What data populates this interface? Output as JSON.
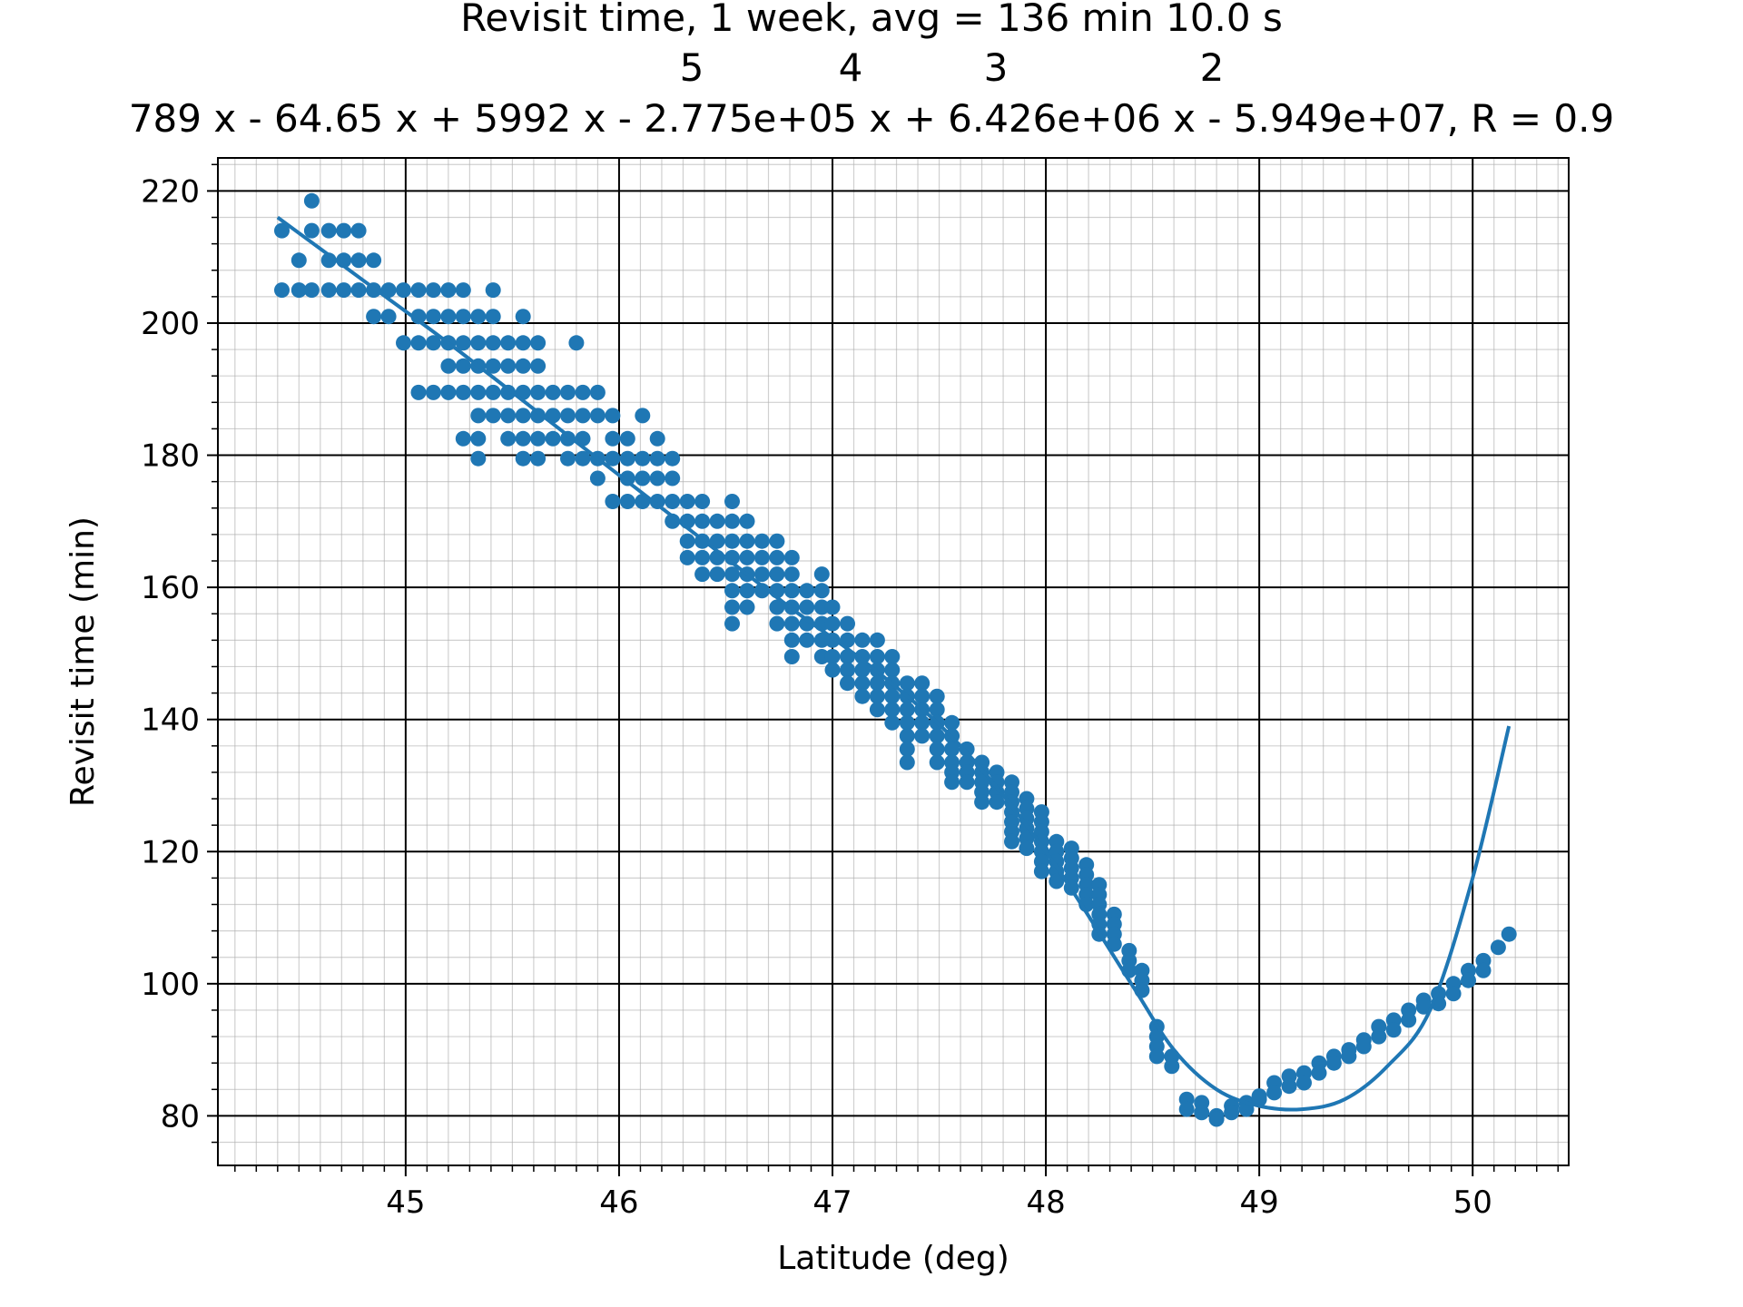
{
  "chart_data": {
    "type": "scatter",
    "title": "Revisit time, 1 week, avg = 136 min 10.0 s",
    "subtitle_exponents": [
      "5",
      "4",
      "3",
      "2"
    ],
    "subtitle": "789 x - 64.65 x + 5992 x - 2.775e+05 x + 6.426e+06 x - 5.949e+07, R = 0.9",
    "xlabel": "Latitude (deg)",
    "ylabel": "Revisit time (min)",
    "xlim": [
      44.12,
      50.45
    ],
    "ylim": [
      72.5,
      225
    ],
    "x_ticks": [
      45,
      46,
      47,
      48,
      49,
      50
    ],
    "y_ticks": [
      80,
      100,
      120,
      140,
      160,
      180,
      200,
      220
    ],
    "grid": true,
    "minor_grid": true,
    "series_color": "#1f77b4",
    "fit_curve": {
      "x": [
        44.4,
        44.8,
        45.2,
        45.6,
        46.0,
        46.4,
        46.8,
        47.2,
        47.6,
        48.0,
        48.4,
        48.6,
        48.8,
        49.0,
        49.2,
        49.4,
        49.6,
        49.8,
        50.0,
        50.17
      ],
      "y": [
        216,
        206.5,
        197,
        187,
        177,
        167,
        157,
        147.5,
        136,
        120,
        100,
        90,
        84,
        81.5,
        81,
        82.5,
        87.5,
        96,
        116,
        139
      ]
    },
    "scatter_points": [
      [
        44.42,
        214
      ],
      [
        44.42,
        205
      ],
      [
        44.5,
        209.5
      ],
      [
        44.5,
        205
      ],
      [
        44.56,
        218.5
      ],
      [
        44.56,
        214
      ],
      [
        44.56,
        205
      ],
      [
        44.64,
        209.5
      ],
      [
        44.64,
        205
      ],
      [
        44.64,
        214
      ],
      [
        44.71,
        214
      ],
      [
        44.71,
        209.5
      ],
      [
        44.71,
        205
      ],
      [
        44.78,
        214
      ],
      [
        44.78,
        209.5
      ],
      [
        44.78,
        205
      ],
      [
        44.85,
        209.5
      ],
      [
        44.85,
        205
      ],
      [
        44.85,
        201
      ],
      [
        44.92,
        205
      ],
      [
        44.92,
        201
      ],
      [
        44.99,
        205
      ],
      [
        44.99,
        197
      ],
      [
        45.06,
        205
      ],
      [
        45.06,
        201
      ],
      [
        45.06,
        197
      ],
      [
        45.06,
        189.5
      ],
      [
        45.13,
        205
      ],
      [
        45.13,
        201
      ],
      [
        45.13,
        197
      ],
      [
        45.13,
        189.5
      ],
      [
        45.2,
        205
      ],
      [
        45.2,
        201
      ],
      [
        45.2,
        197
      ],
      [
        45.2,
        193.5
      ],
      [
        45.2,
        189.5
      ],
      [
        45.27,
        205
      ],
      [
        45.27,
        201
      ],
      [
        45.27,
        197
      ],
      [
        45.27,
        193.5
      ],
      [
        45.27,
        189.5
      ],
      [
        45.27,
        182.5
      ],
      [
        45.34,
        201
      ],
      [
        45.34,
        197
      ],
      [
        45.34,
        193.5
      ],
      [
        45.34,
        189.5
      ],
      [
        45.34,
        186
      ],
      [
        45.34,
        182.5
      ],
      [
        45.34,
        179.5
      ],
      [
        45.41,
        205
      ],
      [
        45.41,
        201
      ],
      [
        45.41,
        197
      ],
      [
        45.41,
        193.5
      ],
      [
        45.41,
        189.5
      ],
      [
        45.41,
        186
      ],
      [
        45.48,
        197
      ],
      [
        45.48,
        193.5
      ],
      [
        45.48,
        189.5
      ],
      [
        45.48,
        186
      ],
      [
        45.48,
        182.5
      ],
      [
        45.55,
        201
      ],
      [
        45.55,
        197
      ],
      [
        45.55,
        193.5
      ],
      [
        45.55,
        189.5
      ],
      [
        45.55,
        186
      ],
      [
        45.55,
        182.5
      ],
      [
        45.55,
        179.5
      ],
      [
        45.62,
        197
      ],
      [
        45.62,
        193.5
      ],
      [
        45.62,
        189.5
      ],
      [
        45.62,
        186
      ],
      [
        45.62,
        182.5
      ],
      [
        45.62,
        179.5
      ],
      [
        45.69,
        189.5
      ],
      [
        45.69,
        186
      ],
      [
        45.69,
        182.5
      ],
      [
        45.76,
        189.5
      ],
      [
        45.76,
        186
      ],
      [
        45.76,
        182.5
      ],
      [
        45.76,
        179.5
      ],
      [
        45.8,
        197
      ],
      [
        45.83,
        189.5
      ],
      [
        45.83,
        186
      ],
      [
        45.83,
        182.5
      ],
      [
        45.83,
        179.5
      ],
      [
        45.9,
        189.5
      ],
      [
        45.9,
        186
      ],
      [
        45.9,
        179.5
      ],
      [
        45.9,
        176.5
      ],
      [
        45.97,
        186
      ],
      [
        45.97,
        182.5
      ],
      [
        45.97,
        179.5
      ],
      [
        45.97,
        173
      ],
      [
        46.04,
        182.5
      ],
      [
        46.04,
        179.5
      ],
      [
        46.04,
        176.5
      ],
      [
        46.04,
        173
      ],
      [
        46.11,
        186
      ],
      [
        46.11,
        179.5
      ],
      [
        46.11,
        176.5
      ],
      [
        46.11,
        173
      ],
      [
        46.18,
        182.5
      ],
      [
        46.18,
        179.5
      ],
      [
        46.18,
        176.5
      ],
      [
        46.18,
        173
      ],
      [
        46.25,
        179.5
      ],
      [
        46.25,
        176.5
      ],
      [
        46.25,
        173
      ],
      [
        46.25,
        170
      ],
      [
        46.32,
        173
      ],
      [
        46.32,
        170
      ],
      [
        46.32,
        167
      ],
      [
        46.32,
        164.5
      ],
      [
        46.39,
        173
      ],
      [
        46.39,
        170
      ],
      [
        46.39,
        167
      ],
      [
        46.39,
        164.5
      ],
      [
        46.39,
        162
      ],
      [
        46.46,
        170
      ],
      [
        46.46,
        167
      ],
      [
        46.46,
        164.5
      ],
      [
        46.46,
        162
      ],
      [
        46.53,
        173
      ],
      [
        46.53,
        170
      ],
      [
        46.53,
        167
      ],
      [
        46.53,
        164.5
      ],
      [
        46.53,
        162
      ],
      [
        46.53,
        159.5
      ],
      [
        46.53,
        157
      ],
      [
        46.53,
        154.5
      ],
      [
        46.6,
        170
      ],
      [
        46.6,
        167
      ],
      [
        46.6,
        164.5
      ],
      [
        46.6,
        162
      ],
      [
        46.6,
        159.5
      ],
      [
        46.6,
        157
      ],
      [
        46.67,
        167
      ],
      [
        46.67,
        164.5
      ],
      [
        46.67,
        162
      ],
      [
        46.67,
        159.5
      ],
      [
        46.74,
        167
      ],
      [
        46.74,
        164.5
      ],
      [
        46.74,
        162
      ],
      [
        46.74,
        159.5
      ],
      [
        46.74,
        157
      ],
      [
        46.74,
        154.5
      ],
      [
        46.81,
        164.5
      ],
      [
        46.81,
        162
      ],
      [
        46.81,
        159.5
      ],
      [
        46.81,
        157
      ],
      [
        46.81,
        154.5
      ],
      [
        46.81,
        152
      ],
      [
        46.81,
        149.5
      ],
      [
        46.88,
        159.5
      ],
      [
        46.88,
        157
      ],
      [
        46.88,
        154.5
      ],
      [
        46.88,
        152
      ],
      [
        46.95,
        162
      ],
      [
        46.95,
        159.5
      ],
      [
        46.95,
        157
      ],
      [
        46.95,
        154.5
      ],
      [
        46.95,
        152
      ],
      [
        46.95,
        149.5
      ],
      [
        47.0,
        157
      ],
      [
        47.0,
        154.5
      ],
      [
        47.0,
        152
      ],
      [
        47.0,
        149.5
      ],
      [
        47.0,
        147.5
      ],
      [
        47.07,
        154.5
      ],
      [
        47.07,
        152
      ],
      [
        47.07,
        149.5
      ],
      [
        47.07,
        147.5
      ],
      [
        47.07,
        145.5
      ],
      [
        47.14,
        152
      ],
      [
        47.14,
        149.5
      ],
      [
        47.14,
        147.5
      ],
      [
        47.14,
        145.5
      ],
      [
        47.14,
        143.5
      ],
      [
        47.21,
        152
      ],
      [
        47.21,
        149.5
      ],
      [
        47.21,
        147.5
      ],
      [
        47.21,
        145.5
      ],
      [
        47.21,
        143.5
      ],
      [
        47.21,
        141.5
      ],
      [
        47.28,
        149.5
      ],
      [
        47.28,
        147.5
      ],
      [
        47.28,
        145.5
      ],
      [
        47.28,
        143.5
      ],
      [
        47.28,
        141.5
      ],
      [
        47.28,
        139.5
      ],
      [
        47.35,
        145.5
      ],
      [
        47.35,
        143.5
      ],
      [
        47.35,
        141.5
      ],
      [
        47.35,
        139.5
      ],
      [
        47.35,
        137.5
      ],
      [
        47.35,
        135.5
      ],
      [
        47.35,
        133.5
      ],
      [
        47.42,
        145.5
      ],
      [
        47.42,
        143.5
      ],
      [
        47.42,
        141.5
      ],
      [
        47.42,
        139.5
      ],
      [
        47.42,
        137.5
      ],
      [
        47.49,
        143.5
      ],
      [
        47.49,
        141.5
      ],
      [
        47.49,
        139.5
      ],
      [
        47.49,
        137.5
      ],
      [
        47.49,
        135.5
      ],
      [
        47.49,
        133.5
      ],
      [
        47.56,
        139.5
      ],
      [
        47.56,
        137.5
      ],
      [
        47.56,
        135.5
      ],
      [
        47.56,
        133.5
      ],
      [
        47.56,
        132
      ],
      [
        47.56,
        130.5
      ],
      [
        47.63,
        135.5
      ],
      [
        47.63,
        133.5
      ],
      [
        47.63,
        132
      ],
      [
        47.63,
        130.5
      ],
      [
        47.7,
        133.5
      ],
      [
        47.7,
        132
      ],
      [
        47.7,
        130.5
      ],
      [
        47.7,
        129
      ],
      [
        47.7,
        127.5
      ],
      [
        47.77,
        132
      ],
      [
        47.77,
        130.5
      ],
      [
        47.77,
        129
      ],
      [
        47.77,
        127.5
      ],
      [
        47.84,
        130.5
      ],
      [
        47.84,
        129
      ],
      [
        47.84,
        127.5
      ],
      [
        47.84,
        126
      ],
      [
        47.84,
        124.5
      ],
      [
        47.84,
        123
      ],
      [
        47.84,
        121.5
      ],
      [
        47.91,
        128
      ],
      [
        47.91,
        126.5
      ],
      [
        47.91,
        125
      ],
      [
        47.91,
        123.5
      ],
      [
        47.91,
        122
      ],
      [
        47.91,
        120.5
      ],
      [
        47.98,
        126
      ],
      [
        47.98,
        124.5
      ],
      [
        47.98,
        123
      ],
      [
        47.98,
        121.5
      ],
      [
        47.98,
        120
      ],
      [
        47.98,
        118.5
      ],
      [
        47.98,
        117
      ],
      [
        48.05,
        121.5
      ],
      [
        48.05,
        120
      ],
      [
        48.05,
        118.5
      ],
      [
        48.05,
        117
      ],
      [
        48.05,
        115.5
      ],
      [
        48.12,
        120.5
      ],
      [
        48.12,
        119
      ],
      [
        48.12,
        117.5
      ],
      [
        48.12,
        116
      ],
      [
        48.12,
        114.5
      ],
      [
        48.19,
        118
      ],
      [
        48.19,
        116.5
      ],
      [
        48.19,
        115
      ],
      [
        48.19,
        113.5
      ],
      [
        48.19,
        112
      ],
      [
        48.25,
        115
      ],
      [
        48.25,
        113.5
      ],
      [
        48.25,
        112
      ],
      [
        48.25,
        110.5
      ],
      [
        48.25,
        109
      ],
      [
        48.25,
        107.5
      ],
      [
        48.32,
        110.5
      ],
      [
        48.32,
        109
      ],
      [
        48.32,
        107.5
      ],
      [
        48.32,
        106
      ],
      [
        48.39,
        105
      ],
      [
        48.39,
        103.5
      ],
      [
        48.39,
        102
      ],
      [
        48.45,
        102
      ],
      [
        48.45,
        100.5
      ],
      [
        48.45,
        99
      ],
      [
        48.52,
        93.5
      ],
      [
        48.52,
        92
      ],
      [
        48.52,
        90.5
      ],
      [
        48.52,
        89
      ],
      [
        48.59,
        89
      ],
      [
        48.59,
        87.5
      ],
      [
        48.66,
        82.5
      ],
      [
        48.66,
        81
      ],
      [
        48.73,
        82
      ],
      [
        48.73,
        80.5
      ],
      [
        48.8,
        80
      ],
      [
        48.8,
        79.5
      ],
      [
        48.87,
        81.5
      ],
      [
        48.87,
        80.5
      ],
      [
        48.94,
        82
      ],
      [
        48.94,
        81
      ],
      [
        49.0,
        82.5
      ],
      [
        49.0,
        83
      ],
      [
        49.07,
        85
      ],
      [
        49.07,
        83.5
      ],
      [
        49.14,
        86
      ],
      [
        49.14,
        84.5
      ],
      [
        49.21,
        86.5
      ],
      [
        49.21,
        85
      ],
      [
        49.28,
        88
      ],
      [
        49.28,
        86.5
      ],
      [
        49.35,
        89
      ],
      [
        49.35,
        88
      ],
      [
        49.42,
        90
      ],
      [
        49.42,
        89
      ],
      [
        49.49,
        91.5
      ],
      [
        49.49,
        90.5
      ],
      [
        49.56,
        93.5
      ],
      [
        49.56,
        92
      ],
      [
        49.63,
        94.5
      ],
      [
        49.63,
        93
      ],
      [
        49.7,
        96
      ],
      [
        49.7,
        94.5
      ],
      [
        49.77,
        97.5
      ],
      [
        49.77,
        96.5
      ],
      [
        49.84,
        98.5
      ],
      [
        49.84,
        97
      ],
      [
        49.91,
        100
      ],
      [
        49.91,
        98.5
      ],
      [
        49.98,
        102
      ],
      [
        49.98,
        100.5
      ],
      [
        50.05,
        103.5
      ],
      [
        50.05,
        102
      ],
      [
        50.12,
        105.5
      ],
      [
        50.17,
        107.5
      ]
    ]
  }
}
